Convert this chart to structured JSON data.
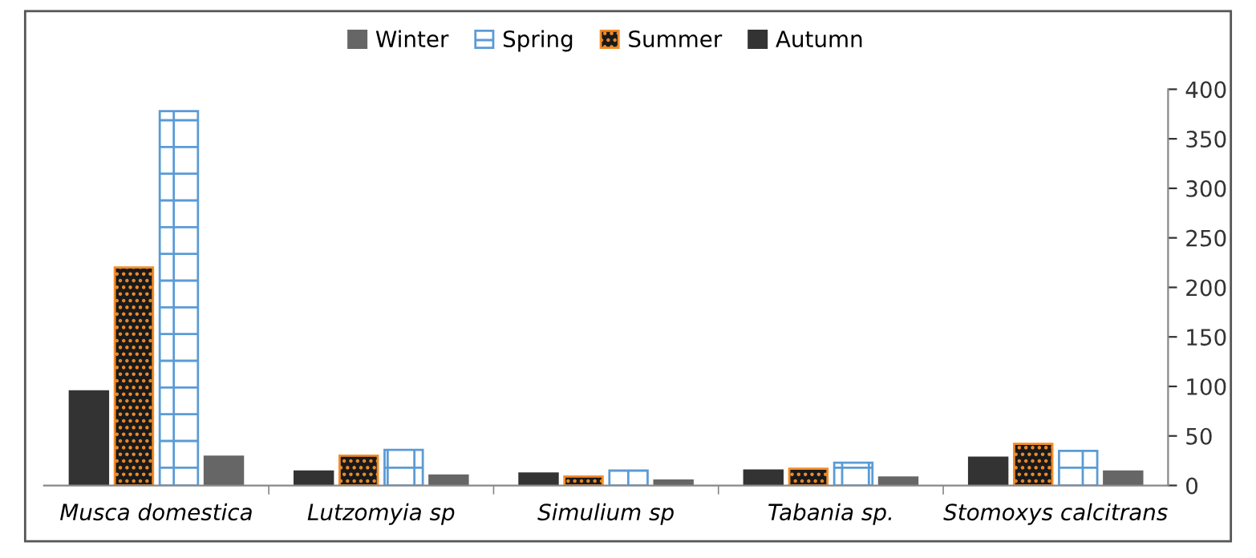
{
  "chart_data": {
    "type": "bar",
    "categories": [
      "Musca domestica",
      "Lutzomyia sp",
      "Simulium sp",
      "Tabania sp.",
      "Stomoxys calcitrans"
    ],
    "series": [
      {
        "name": "Autumn",
        "color": "#333333",
        "values": [
          95,
          14,
          12,
          15,
          28
        ]
      },
      {
        "name": "Summer",
        "color": "#f28c28",
        "values": [
          220,
          30,
          9,
          17,
          42
        ]
      },
      {
        "name": "Spring",
        "color": "#5b9bd5",
        "values": [
          378,
          36,
          15,
          23,
          35
        ]
      },
      {
        "name": "Winter",
        "color": "#666666",
        "values": [
          29,
          10,
          5,
          8,
          14
        ]
      }
    ],
    "ylim": [
      0,
      400
    ],
    "yticks": [
      0,
      50,
      100,
      150,
      200,
      250,
      300,
      350,
      400
    ],
    "grid": false,
    "legend": "top"
  }
}
